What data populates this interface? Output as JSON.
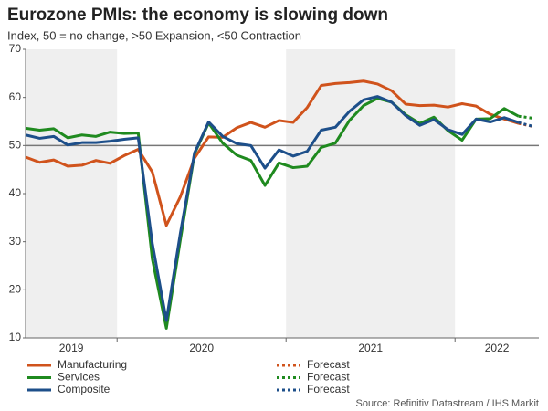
{
  "chart_data": {
    "type": "line",
    "title": "Eurozone PMIs: the economy is slowing down",
    "subtitle": "Index, 50 = no change, >50 Expansion, <50 Contraction",
    "source": "Source: Refinitiv Datastream / IHS Markit",
    "categories": [
      null,
      null,
      null,
      null,
      null,
      null,
      null,
      null,
      null,
      null,
      null,
      null,
      null,
      null,
      null,
      null,
      null,
      null,
      null,
      null,
      null,
      null,
      null,
      null,
      null,
      null,
      null,
      null,
      null,
      null,
      null,
      null,
      null,
      null,
      null,
      null,
      null
    ],
    "year_labels": [
      "2019",
      "2020",
      "2021",
      "2022"
    ],
    "reference_line": 50,
    "ylim": [
      10,
      70
    ],
    "yticks": [
      10,
      20,
      30,
      40,
      50,
      60,
      70
    ],
    "series": [
      {
        "name": "Manufacturing",
        "color": "#d0531c",
        "values": [
          47.6,
          46.5,
          47.0,
          45.7,
          45.9,
          46.9,
          46.3,
          47.9,
          49.2,
          44.5,
          33.4,
          39.4,
          47.4,
          51.8,
          51.7,
          53.7,
          54.8,
          53.8,
          55.2,
          54.8,
          57.9,
          62.5,
          62.9,
          63.1,
          63.4,
          62.8,
          61.4,
          58.6,
          58.3,
          58.4,
          58.0,
          58.7,
          58.2,
          56.5,
          55.5,
          54.6,
          null
        ]
      },
      {
        "name": "Services",
        "color": "#1f8a1f",
        "values": [
          53.6,
          53.2,
          53.5,
          51.6,
          52.2,
          51.9,
          52.8,
          52.5,
          52.6,
          26.4,
          12.0,
          30.5,
          48.3,
          54.7,
          50.5,
          48.0,
          46.9,
          41.7,
          46.4,
          45.4,
          45.7,
          49.6,
          50.5,
          55.2,
          58.3,
          59.8,
          59.0,
          56.4,
          54.6,
          55.9,
          53.1,
          51.1,
          55.5,
          55.6,
          57.7,
          56.1,
          null
        ]
      },
      {
        "name": "Composite",
        "color": "#1d4f8a",
        "values": [
          52.2,
          51.5,
          51.9,
          50.1,
          50.6,
          50.6,
          50.9,
          51.3,
          51.6,
          29.7,
          13.6,
          31.9,
          48.5,
          54.9,
          51.9,
          50.4,
          50.0,
          45.3,
          49.1,
          47.8,
          48.8,
          53.2,
          53.8,
          57.1,
          59.5,
          60.2,
          59.0,
          56.2,
          54.2,
          55.4,
          53.3,
          52.3,
          55.5,
          54.9,
          55.8,
          54.8,
          null
        ]
      },
      {
        "name": "Forecast",
        "color": "#d0531c",
        "dashed": true,
        "values": [
          null,
          null,
          null,
          null,
          null,
          null,
          null,
          null,
          null,
          null,
          null,
          null,
          null,
          null,
          null,
          null,
          null,
          null,
          null,
          null,
          null,
          null,
          null,
          null,
          null,
          null,
          null,
          null,
          null,
          null,
          null,
          null,
          null,
          null,
          null,
          null,
          54.0
        ]
      },
      {
        "name": "Forecast",
        "color": "#1f8a1f",
        "dashed": true,
        "values": [
          null,
          null,
          null,
          null,
          null,
          null,
          null,
          null,
          null,
          null,
          null,
          null,
          null,
          null,
          null,
          null,
          null,
          null,
          null,
          null,
          null,
          null,
          null,
          null,
          null,
          null,
          null,
          null,
          null,
          null,
          null,
          null,
          null,
          null,
          null,
          null,
          55.7
        ]
      },
      {
        "name": "Forecast",
        "color": "#1d4f8a",
        "dashed": true,
        "values": [
          null,
          null,
          null,
          null,
          null,
          null,
          null,
          null,
          null,
          null,
          null,
          null,
          null,
          null,
          null,
          null,
          null,
          null,
          null,
          null,
          null,
          null,
          null,
          null,
          null,
          null,
          null,
          null,
          null,
          null,
          null,
          null,
          null,
          null,
          null,
          null,
          54.0
        ]
      }
    ]
  }
}
